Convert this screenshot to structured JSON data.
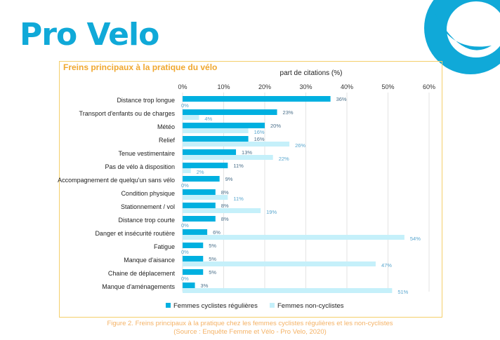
{
  "logo": {
    "text": "Pro Velo",
    "brand_color": "#10a9d8"
  },
  "chart_data": {
    "type": "bar",
    "orientation": "horizontal",
    "title": "Freins principaux à la pratique du vélo",
    "xlabel": "part de citations (%)",
    "xlim": [
      0,
      60
    ],
    "xticks": [
      "0%",
      "10%",
      "20%",
      "30%",
      "40%",
      "50%",
      "60%"
    ],
    "grid": true,
    "legend": "bottom",
    "categories": [
      "Distance trop longue",
      "Transport d'enfants ou de charges",
      "Météo",
      "Relief",
      "Tenue vestimentaire",
      "Pas de vélo à disposition",
      "Accompagnement de quelqu'un sans vélo",
      "Condition physique",
      "Stationnement / vol",
      "Distance trop courte",
      "Danger et insécurité routière",
      "Fatigue",
      "Manque d'aisance",
      "Chaine de déplacement",
      "Manque d'aménagements"
    ],
    "series": [
      {
        "name": "Femmes cyclistes régulières",
        "color": "#00b0e0",
        "values": [
          36,
          23,
          20,
          16,
          13,
          11,
          9,
          8,
          8,
          8,
          6,
          5,
          5,
          5,
          3
        ]
      },
      {
        "name": "Femmes non-cyclistes",
        "color": "#c5f0fa",
        "values": [
          0,
          4,
          16,
          26,
          22,
          2,
          0,
          11,
          19,
          0,
          54,
          0,
          47,
          0,
          51
        ]
      }
    ]
  },
  "caption": {
    "line1": "Figure 2. Freins principaux à la pratique chez les femmes cyclistes régulières et les non-cyclistes",
    "line2": "(Source : Enquête Femme et Vélo - Pro Velo, 2020)"
  }
}
